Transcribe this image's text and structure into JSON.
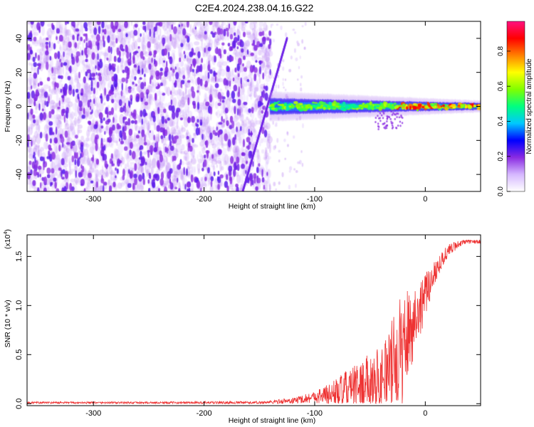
{
  "title": "C2E4.2024.238.04.16.G22",
  "chart_data": [
    {
      "type": "heatmap",
      "xlabel": "Height of straight line (km)",
      "ylabel": "Frequency (Hz)",
      "xlim": [
        -360,
        50
      ],
      "ylim": [
        -50,
        50
      ],
      "xticks": [
        -300,
        -200,
        -100,
        0
      ],
      "yticks": [
        -40,
        -20,
        0,
        20,
        40
      ],
      "colorbar": {
        "label": "Normalized spectral amplitude",
        "range": [
          0.0,
          0.97
        ],
        "ticks": [
          "0.0",
          "0.2",
          "0.4",
          "0.6",
          "0.8"
        ],
        "tick_values": [
          0.0,
          0.2,
          0.4,
          0.6,
          0.8
        ],
        "colors": [
          "#ffffff",
          "#d6b8ff",
          "#8a2be2",
          "#0000ff",
          "#00c8ff",
          "#00ff80",
          "#80ff00",
          "#ffff00",
          "#ff8000",
          "#ff0000",
          "#ff1080"
        ]
      },
      "features": {
        "noise_region_x": [
          -360,
          -140
        ],
        "noise_amplitude": 0.15,
        "onset_x": -140,
        "diagonal_streak": {
          "x": [
            -165,
            -125
          ],
          "freq": [
            -50,
            40
          ]
        },
        "signal_band": {
          "x": [
            -140,
            50
          ],
          "center_freq": 0,
          "half_width": [
            5,
            2
          ],
          "peak_amplitude": 0.9
        }
      }
    },
    {
      "type": "line",
      "xlabel": "Height of straight line (km)",
      "ylabel": "SNR (10 * v/v)",
      "y_multiplier": "(x10",
      "y_exponent": "4",
      "y_multiplier_close": ")",
      "xlim": [
        -360,
        50
      ],
      "ylim": [
        -0.02,
        1.72
      ],
      "xticks": [
        -300,
        -200,
        -100,
        0
      ],
      "yticks": [
        0.0,
        0.5,
        1.0,
        1.5
      ],
      "ytick_labels": [
        "0.0",
        "0.5",
        "1.0",
        "1.5"
      ],
      "color": "#ee3333",
      "series": [
        {
          "x": [
            -360,
            -250,
            -150,
            -120,
            -100,
            -85,
            -75,
            -65,
            -55,
            -45,
            -35,
            -28,
            -22,
            -18,
            -12,
            -5,
            0,
            10,
            20,
            30,
            40,
            50
          ],
          "base": [
            0.01,
            0.01,
            0.01,
            0.03,
            0.07,
            0.1,
            0.13,
            0.16,
            0.19,
            0.24,
            0.3,
            0.38,
            0.5,
            0.65,
            0.8,
            0.97,
            1.1,
            1.38,
            1.55,
            1.63,
            1.65,
            1.65
          ],
          "spread": [
            0.01,
            0.01,
            0.015,
            0.03,
            0.06,
            0.12,
            0.18,
            0.22,
            0.28,
            0.32,
            0.4,
            0.55,
            0.6,
            0.55,
            0.4,
            0.3,
            0.22,
            0.12,
            0.07,
            0.04,
            0.02,
            0.02
          ]
        }
      ]
    }
  ]
}
